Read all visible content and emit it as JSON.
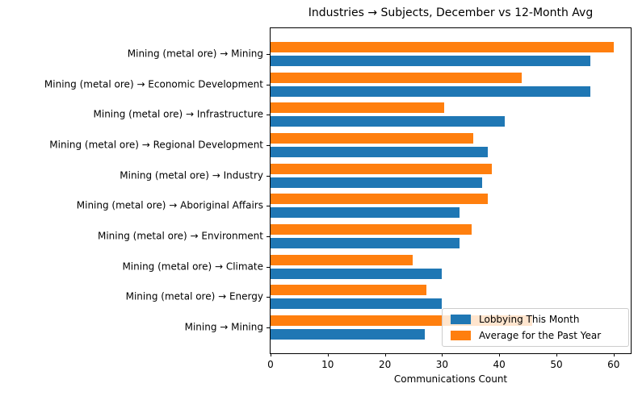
{
  "title": "Industries → Subjects, December vs 12-Month Avg",
  "chart_data": {
    "type": "bar",
    "orientation": "horizontal",
    "title": "Industries → Subjects, December vs 12-Month Avg",
    "xlabel": "Communications Count",
    "ylabel": "",
    "categories": [
      "Mining (metal ore) → Mining",
      "Mining (metal ore) → Economic Development",
      "Mining (metal ore) → Infrastructure",
      "Mining (metal ore) → Regional Development",
      "Mining (metal ore) → Industry",
      "Mining (metal ore) → Aboriginal Affairs",
      "Mining (metal ore) → Environment",
      "Mining (metal ore) → Climate",
      "Mining (metal ore) → Energy",
      "Mining → Mining"
    ],
    "series": [
      {
        "name": "Lobbying This Month",
        "color": "#1f77b4",
        "values": [
          56,
          56,
          41,
          38,
          37,
          33,
          33,
          30,
          30,
          27
        ]
      },
      {
        "name": "Average for the Past Year",
        "color": "#ff7f0e",
        "values": [
          60,
          44,
          30.3,
          35.4,
          38.7,
          38,
          35.2,
          24.9,
          27.3,
          45.8
        ]
      }
    ],
    "xticks": [
      0,
      10,
      20,
      30,
      40,
      50,
      60
    ],
    "xlim": [
      0,
      63
    ],
    "legend_position": "lower right",
    "grid": false
  }
}
